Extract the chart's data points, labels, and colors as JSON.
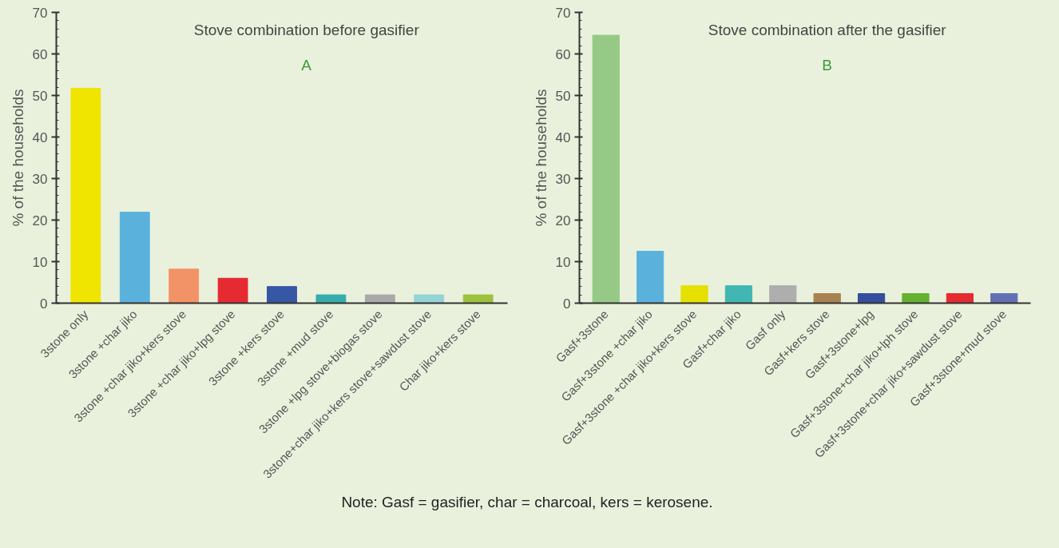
{
  "chart_data": [
    {
      "type": "bar",
      "title": "Stove combination before gasifier",
      "subtitle": "A",
      "ylabel": "% of the households",
      "categories": [
        "3stone only",
        "3stone +char jiko",
        "3stone +char jiko+kers stove",
        "3stone +char jiko+lpg stove",
        "3stone +kers stove",
        "3stone +mud stove",
        "3stone +lpg stove+biogas stove",
        "3stone+char jiko+kers stove+sawdust stove",
        "Char jiko+kers stove"
      ],
      "values": [
        51.7,
        21.9,
        8.2,
        6.0,
        4.0,
        2.0,
        2.0,
        2.0,
        2.0
      ],
      "colors": [
        "#f0e500",
        "#5ab2dc",
        "#f29367",
        "#e52a31",
        "#3657a5",
        "#36aeab",
        "#a9a9a9",
        "#94d3d6",
        "#9dc23d"
      ],
      "ylim": [
        0,
        70
      ],
      "yticks": [
        0,
        10,
        20,
        30,
        40,
        50,
        60,
        70
      ],
      "grid": false
    },
    {
      "type": "bar",
      "title": "Stove combination after the gasifier",
      "subtitle": "B",
      "ylabel": "% of the households",
      "categories": [
        "Gasf+3stone",
        "Gasf+3stone +char jiko",
        "Gasf+3stone +char jiko+kers stove",
        "Gasf+char jiko",
        "Gasf only",
        "Gasf+kers stove",
        "Gasf+3stone+lpg",
        "Gasf+3stone+char jiko+lph stove",
        "Gasf+3stone+char jiko+sawdust stove",
        "Gasf+3stone+mud stove"
      ],
      "values": [
        64.5,
        12.5,
        4.2,
        4.2,
        4.2,
        2.3,
        2.3,
        2.3,
        2.3,
        2.3
      ],
      "colors": [
        "#97c986",
        "#5ab2dc",
        "#e5e000",
        "#41b6b3",
        "#aeaeae",
        "#a8824f",
        "#344f9c",
        "#64b22e",
        "#e52a31",
        "#6270b3"
      ],
      "ylim": [
        0,
        70
      ],
      "yticks": [
        0,
        10,
        20,
        30,
        40,
        50,
        60,
        70
      ],
      "grid": false,
      "annotations": [
        "Note: Gasf = gasifier, char = charcoal, kers = kerosene."
      ]
    }
  ]
}
